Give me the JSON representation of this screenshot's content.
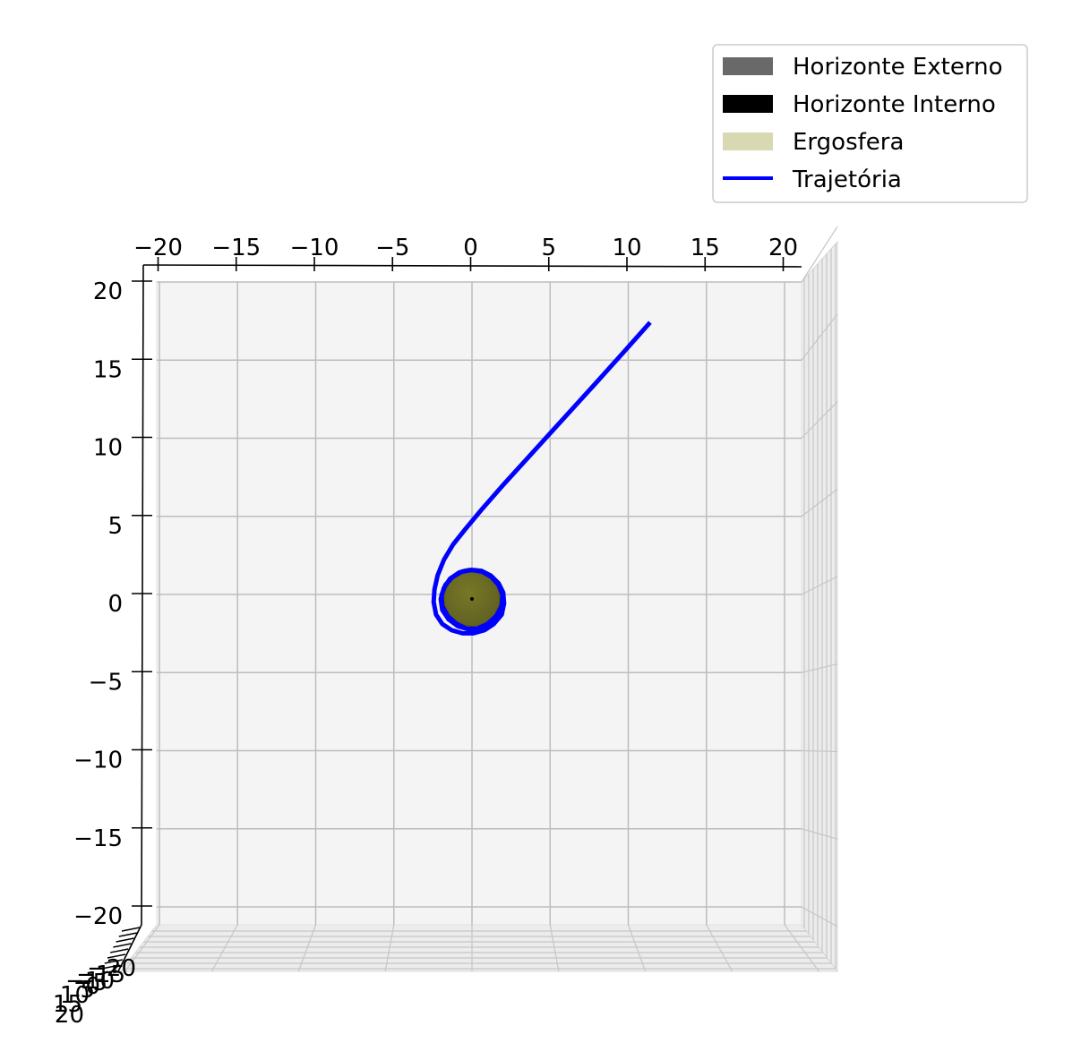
{
  "chart_data": {
    "type": "line",
    "projection": "3d",
    "view": "top-down",
    "title": "",
    "xlabel": "",
    "ylabel": "",
    "zlabel": "",
    "xlim": [
      -21,
      21
    ],
    "ylim": [
      -21,
      21
    ],
    "zlim": [
      -21,
      21
    ],
    "grid": true,
    "xticks": [
      -20,
      -15,
      -10,
      -5,
      0,
      5,
      10,
      15,
      20
    ],
    "yticks": [
      -20,
      -15,
      -10,
      -5,
      0,
      5,
      10,
      15,
      20
    ],
    "x_tick_labels": [
      "−20",
      "−15",
      "−10",
      "−5",
      "0",
      "5",
      "10",
      "15",
      "20"
    ],
    "y_tick_labels": [
      "−20",
      "−15",
      "−10",
      "−5",
      "0",
      "5",
      "10",
      "15",
      "20"
    ],
    "z_tick_labels": [
      "−20",
      "−15",
      "−10",
      "−5",
      "0",
      "5",
      "10",
      "15",
      "20"
    ],
    "legend_position": "top-right",
    "legend": [
      {
        "label": "Horizonte Externo",
        "kind": "patch",
        "color": "#696969"
      },
      {
        "label": "Horizonte Interno",
        "kind": "patch",
        "color": "#000000"
      },
      {
        "label": "Ergosfera",
        "kind": "patch",
        "color": "#d8d8b2"
      },
      {
        "label": "Trajetória",
        "kind": "line",
        "color": "#0000ff"
      }
    ],
    "bodies": [
      {
        "name": "Ergosfera",
        "radius": 2.0,
        "color": "#808000"
      },
      {
        "name": "Horizonte Externo",
        "radius": 1.7,
        "color": "#696969"
      },
      {
        "name": "Horizonte Interno",
        "radius": 0.3,
        "color": "#000000"
      }
    ],
    "series": [
      {
        "name": "Trajetória",
        "color": "#0000ff",
        "points": [
          [
            11.4,
            17.7
          ],
          [
            9.8,
            15.9
          ],
          [
            8.0,
            13.9
          ],
          [
            6.0,
            11.7
          ],
          [
            4.0,
            9.5
          ],
          [
            2.0,
            7.3
          ],
          [
            0.6,
            5.7
          ],
          [
            -0.4,
            4.5
          ],
          [
            -1.2,
            3.5
          ],
          [
            -1.8,
            2.5
          ],
          [
            -2.2,
            1.5
          ],
          [
            -2.4,
            0.6
          ],
          [
            -2.45,
            -0.2
          ],
          [
            -2.3,
            -1.0
          ],
          [
            -1.9,
            -1.6
          ],
          [
            -1.3,
            -2.0
          ],
          [
            -0.6,
            -2.2
          ],
          [
            0.1,
            -2.2
          ],
          [
            0.8,
            -2.0
          ],
          [
            1.4,
            -1.6
          ],
          [
            1.9,
            -1.0
          ],
          [
            2.05,
            -0.3
          ],
          [
            2.0,
            0.4
          ],
          [
            1.7,
            1.0
          ],
          [
            1.2,
            1.5
          ],
          [
            0.6,
            1.8
          ],
          [
            -0.1,
            1.85
          ],
          [
            -0.8,
            1.7
          ],
          [
            -1.4,
            1.3
          ],
          [
            -1.8,
            0.7
          ],
          [
            -2.0,
            0.0
          ],
          [
            -1.9,
            -0.7
          ],
          [
            -1.5,
            -1.3
          ],
          [
            -0.9,
            -1.75
          ],
          [
            -0.2,
            -1.95
          ],
          [
            0.5,
            -1.9
          ],
          [
            1.1,
            -1.6
          ],
          [
            1.6,
            -1.1
          ],
          [
            1.9,
            -0.4
          ],
          [
            1.95,
            0.3
          ],
          [
            1.7,
            0.9
          ],
          [
            1.25,
            1.4
          ],
          [
            0.65,
            1.75
          ],
          [
            0.0,
            1.85
          ],
          [
            -0.65,
            1.75
          ],
          [
            -1.25,
            1.4
          ],
          [
            -1.7,
            0.9
          ],
          [
            -1.95,
            0.25
          ],
          [
            -1.9,
            -0.45
          ],
          [
            -1.55,
            -1.1
          ],
          [
            -1.0,
            -1.6
          ],
          [
            -0.35,
            -1.9
          ],
          [
            0.35,
            -1.9
          ],
          [
            1.0,
            -1.6
          ],
          [
            1.55,
            -1.1
          ],
          [
            1.9,
            -0.45
          ],
          [
            1.95,
            0.25
          ],
          [
            1.7,
            0.9
          ],
          [
            1.2,
            1.45
          ],
          [
            0.55,
            1.8
          ],
          [
            -0.15,
            1.85
          ]
        ]
      }
    ]
  }
}
